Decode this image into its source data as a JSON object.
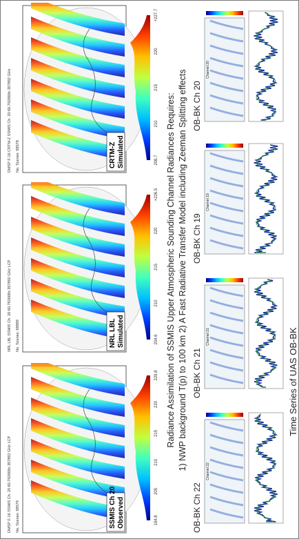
{
  "title": "Radiance Assimilation of SSMIS Upper Atmospheric Sounding Channel Radiances Requires:",
  "subtitle": "1)  NWP background T(p) to 100 km   2) A Fast Radiative Transfer Model including Zeeman Splitting effects",
  "maps": [
    {
      "header": "DMSP F-16 SSMIS Ch. 20 60.792668±.357892 GHz LCP",
      "scenes": "No. Scenes: 68579",
      "label_line1": "SSMIS Ch 20",
      "label_line2": "Observed",
      "ticks": [
        "194.8",
        "205",
        "210",
        "215",
        "220",
        "229.8"
      ]
    },
    {
      "header": "NRL LBL SSMIS Ch. 20 60.792668±.357892 GHz LCP",
      "scenes": "No. Scenes: 68899",
      "label_line1": "NRL LBL",
      "label_line2": "Simulated",
      "ticks": [
        "204.6",
        "210",
        "215",
        "220",
        "+226.5"
      ]
    },
    {
      "header": "DMSP F-16 CRTM-Z SSMIS Ch. 20 60.792668±.357892 GHz",
      "scenes": "No. Scenes: 68578",
      "label_line1": "CRTM-Z",
      "label_line2": "Simulated",
      "ticks": [
        "206.7",
        "210",
        "215",
        "220",
        "+227.7"
      ]
    }
  ],
  "time_series": [
    {
      "label": "OB-BK Ch 22",
      "plot_title": "Channel 22"
    },
    {
      "label": "OB-BK Ch 21",
      "plot_title": "Channel 21"
    },
    {
      "label": "OB-BK Ch 19",
      "plot_title": "Channel 19"
    },
    {
      "label": "OB-BK Ch 20",
      "plot_title": "Channel 20"
    }
  ],
  "caption": "Time Series of UAS OB-BK"
}
